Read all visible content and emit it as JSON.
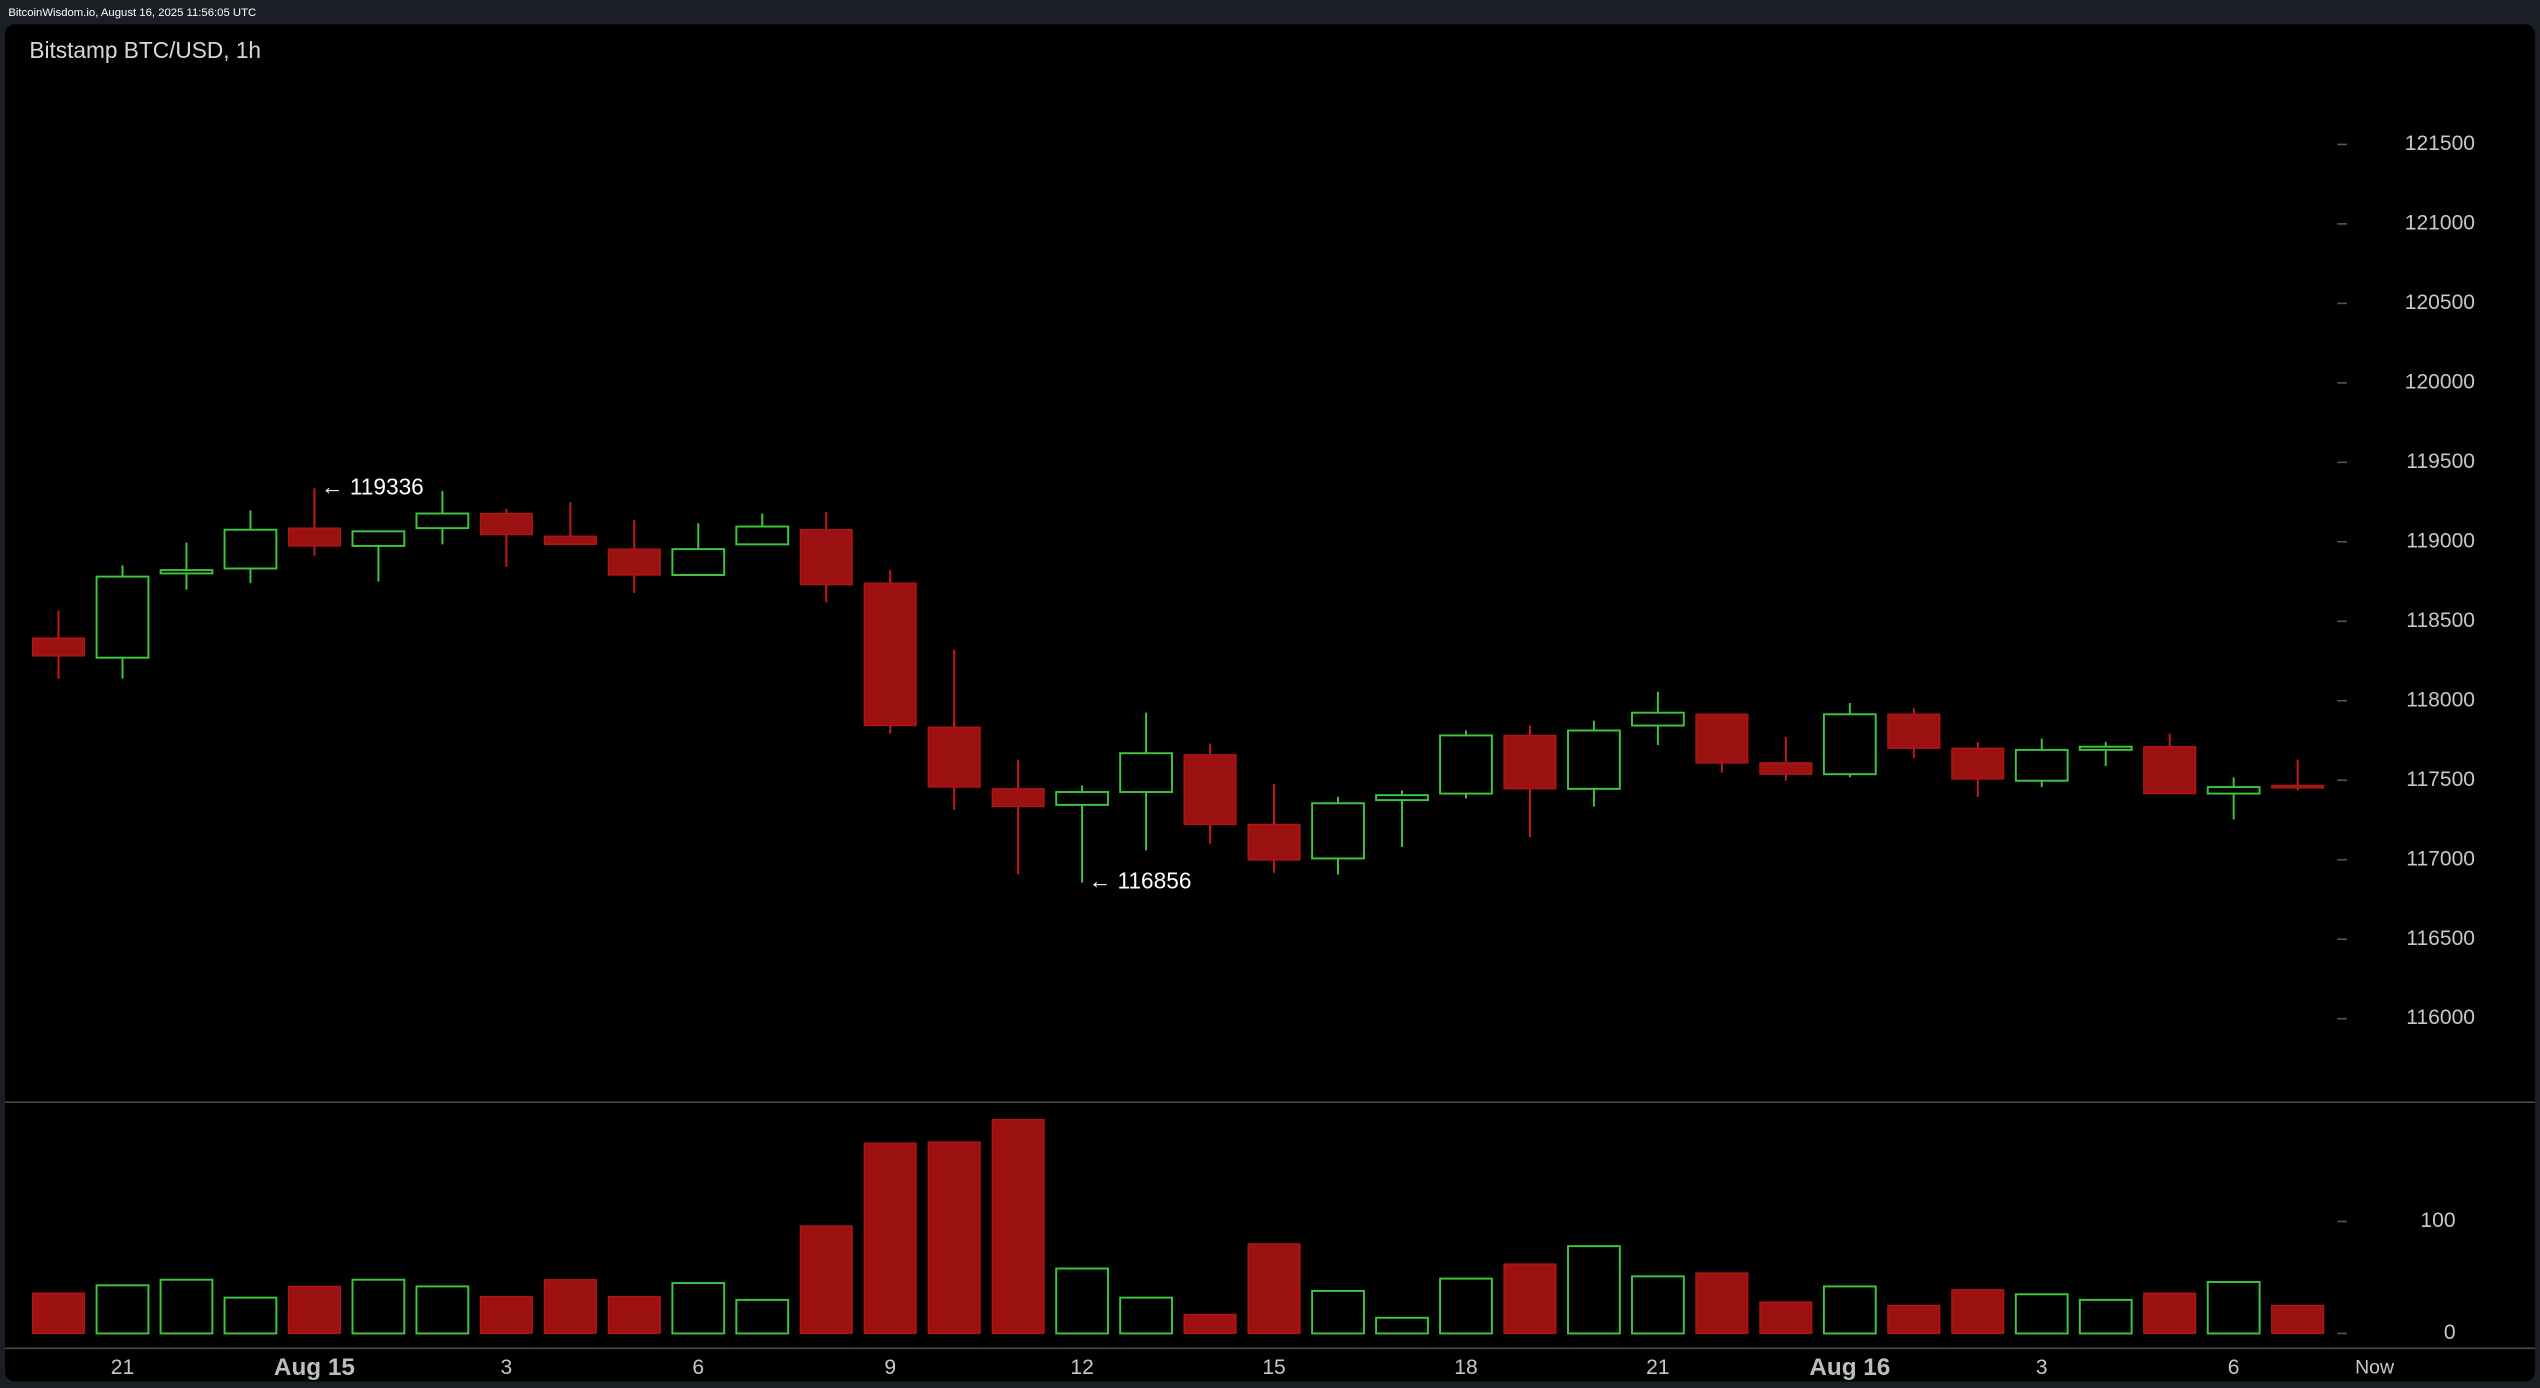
{
  "header": {
    "text": "BitcoinWisdom.io, August 16, 2025 11:56:05 UTC"
  },
  "chart_data": [
    {
      "type": "candlestick",
      "title": "Bitstamp BTC/USD, 1h",
      "categories": [
        null,
        "21",
        null,
        null,
        "Aug 15",
        null,
        null,
        "3",
        null,
        null,
        "6",
        null,
        null,
        "9",
        null,
        null,
        "12",
        null,
        null,
        "15",
        null,
        null,
        "18",
        null,
        null,
        "21",
        null,
        null,
        "Aug 16",
        null,
        null,
        "3",
        null,
        null,
        "6",
        null
      ],
      "open": [
        118394,
        118271,
        118801,
        118832,
        119086,
        118974,
        119086,
        119178,
        119035,
        118954,
        118791,
        118984,
        119076,
        118740,
        117834,
        117446,
        117345,
        117426,
        117660,
        117222,
        117008,
        117375,
        117416,
        117782,
        117446,
        117844,
        117915,
        117609,
        117538,
        117915,
        117701,
        117497,
        117691,
        117711,
        117416,
        117467
      ],
      "high": [
        118567,
        118852,
        118995,
        119198,
        119336,
        119066,
        119320,
        119208,
        119249,
        119137,
        119117,
        119178,
        119188,
        118821,
        118322,
        117630,
        117467,
        117925,
        117731,
        117477,
        117396,
        117436,
        117813,
        117844,
        117874,
        118057,
        117915,
        117772,
        117986,
        117956,
        117742,
        117762,
        117742,
        117793,
        117518,
        117630
      ],
      "low": [
        118139,
        118139,
        118699,
        118740,
        118913,
        118750,
        118984,
        118842,
        118984,
        118679,
        118791,
        118984,
        118618,
        117793,
        117314,
        116907,
        116856,
        117059,
        117100,
        116917,
        116907,
        117080,
        117385,
        117141,
        117334,
        117721,
        117548,
        117497,
        117518,
        117640,
        117395,
        117457,
        117589,
        117416,
        117253,
        117436
      ],
      "close": [
        118282,
        118781,
        118822,
        119076,
        118974,
        119066,
        119178,
        119045,
        118984,
        118791,
        118954,
        119096,
        118730,
        117844,
        117457,
        117334,
        117426,
        117670,
        117222,
        116998,
        117355,
        117406,
        117782,
        117446,
        117813,
        117925,
        117609,
        117538,
        117915,
        117701,
        117508,
        117691,
        117711,
        117416,
        117457,
        117457
      ],
      "ylim": [
        115480,
        121950
      ],
      "yticks": [
        116000,
        116500,
        117000,
        117500,
        118000,
        118500,
        119000,
        119500,
        120000,
        120500,
        121000,
        121500
      ],
      "up_color": "#3ec63e",
      "down_color": "#9c1111",
      "annotations": [
        {
          "text": "← 119336",
          "value": 119336
        },
        {
          "text": "← 116856",
          "value": 116856
        }
      ],
      "now_label": "Now"
    },
    {
      "type": "volume",
      "values": [
        36,
        43,
        48,
        32,
        42,
        48,
        42,
        33,
        48,
        33,
        45,
        30,
        96,
        170,
        171,
        191,
        58,
        32,
        17,
        80,
        38,
        14,
        49,
        62,
        78,
        51,
        54,
        28,
        42,
        25,
        39,
        35,
        30,
        36,
        46,
        25
      ],
      "ylim": [
        -14,
        203
      ],
      "yticks": [
        0,
        100
      ]
    }
  ]
}
